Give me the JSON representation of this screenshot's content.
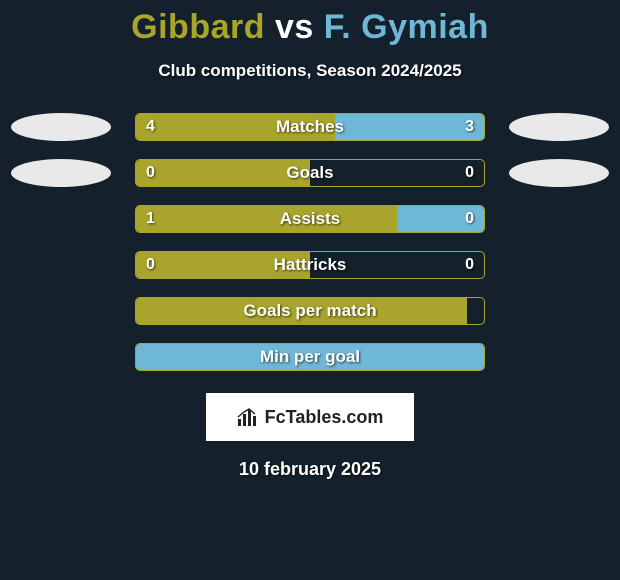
{
  "background_color": "#14202b",
  "title": {
    "left_name": "Gibbard",
    "vs": "vs",
    "right_name": "F. Gymiah",
    "left_color": "#a9a42b",
    "right_color": "#6fb7d6",
    "vs_color": "#ffffff"
  },
  "subtitle": {
    "text": "Club competitions, Season 2024/2025",
    "color": "#ffffff"
  },
  "bar_style": {
    "track_width": 350,
    "track_height": 28,
    "border_color": "#a9a42b",
    "left_fill": "#a9a42b",
    "right_fill": "#6fb7d6",
    "label_fontsize": 17,
    "value_fontsize": 16,
    "row_gap": 18
  },
  "avatar_style": {
    "left_fill": "#e9e9e9",
    "right_fill": "#e9e9e9",
    "width": 100,
    "height": 28
  },
  "rows": [
    {
      "label": "Matches",
      "left_value": "4",
      "right_value": "3",
      "left_pct": 57.1,
      "right_pct": 42.9,
      "show_avatars": true
    },
    {
      "label": "Goals",
      "left_value": "0",
      "right_value": "0",
      "left_pct": 50,
      "right_pct": 0,
      "show_avatars": true
    },
    {
      "label": "Assists",
      "left_value": "1",
      "right_value": "0",
      "left_pct": 75,
      "right_pct": 25,
      "show_avatars": false
    },
    {
      "label": "Hattricks",
      "left_value": "0",
      "right_value": "0",
      "left_pct": 50,
      "right_pct": 0,
      "show_avatars": false
    },
    {
      "label": "Goals per match",
      "left_value": "",
      "right_value": "",
      "left_pct": 95,
      "right_pct": 0,
      "show_avatars": false
    },
    {
      "label": "Min per goal",
      "left_value": "",
      "right_value": "",
      "left_pct": 0,
      "right_pct": 100,
      "show_avatars": false
    }
  ],
  "logo": {
    "text_fc": "Fc",
    "text_rest": "Tables.com",
    "box_bg": "#ffffff",
    "text_color": "#222222",
    "icon_color": "#222222"
  },
  "date": {
    "text": "10 february 2025",
    "color": "#ffffff"
  }
}
